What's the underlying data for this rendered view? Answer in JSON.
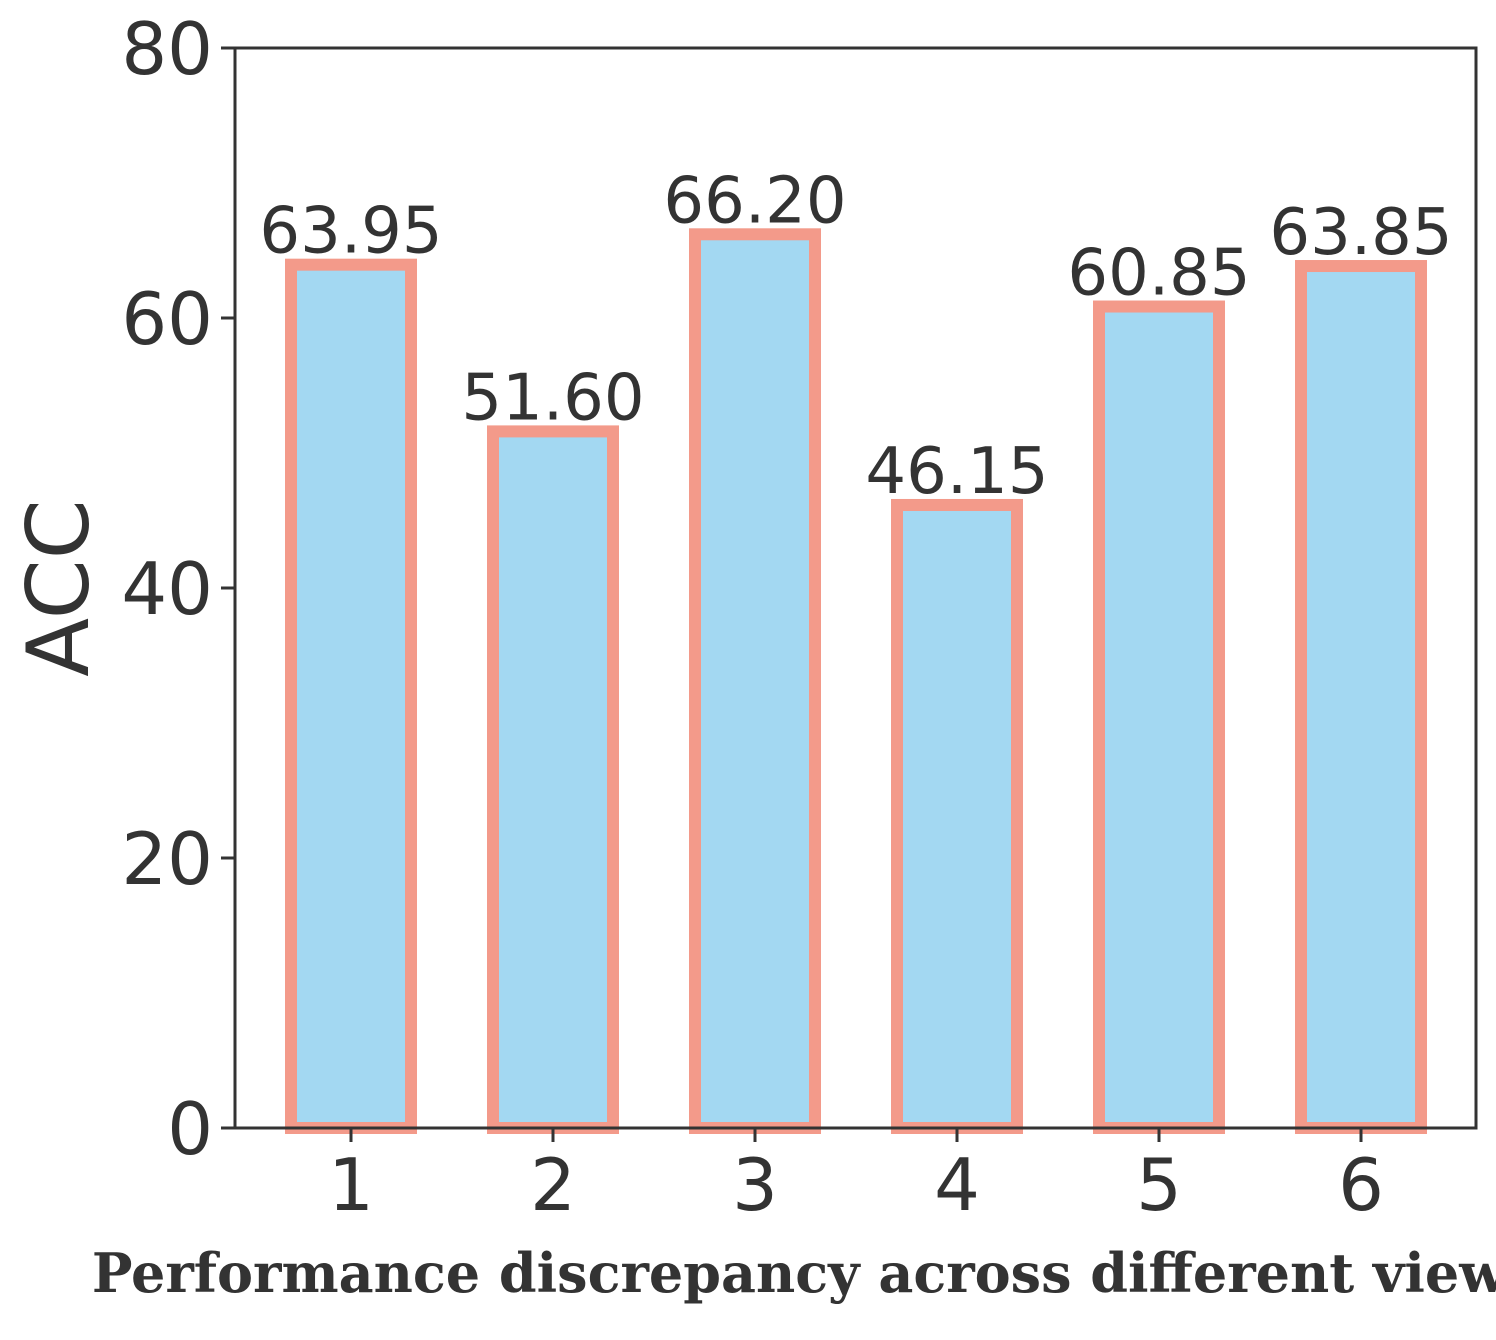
{
  "chart_data": {
    "type": "bar",
    "categories": [
      "1",
      "2",
      "3",
      "4",
      "5",
      "6"
    ],
    "values": [
      63.95,
      51.6,
      66.2,
      46.15,
      60.85,
      63.85
    ],
    "data_labels": [
      "63.95",
      "51.60",
      "66.20",
      "46.15",
      "60.85",
      "63.85"
    ],
    "yticks": [
      "0",
      "20",
      "40",
      "60",
      "80"
    ],
    "ylim": [
      0,
      80
    ],
    "title": "",
    "xlabel": "Performance discrepancy across different views",
    "ylabel": "ACC",
    "grid": false,
    "bar_fill": "#a3d8f2",
    "bar_edge": "#f39a8a",
    "axis_color": "#333333"
  }
}
